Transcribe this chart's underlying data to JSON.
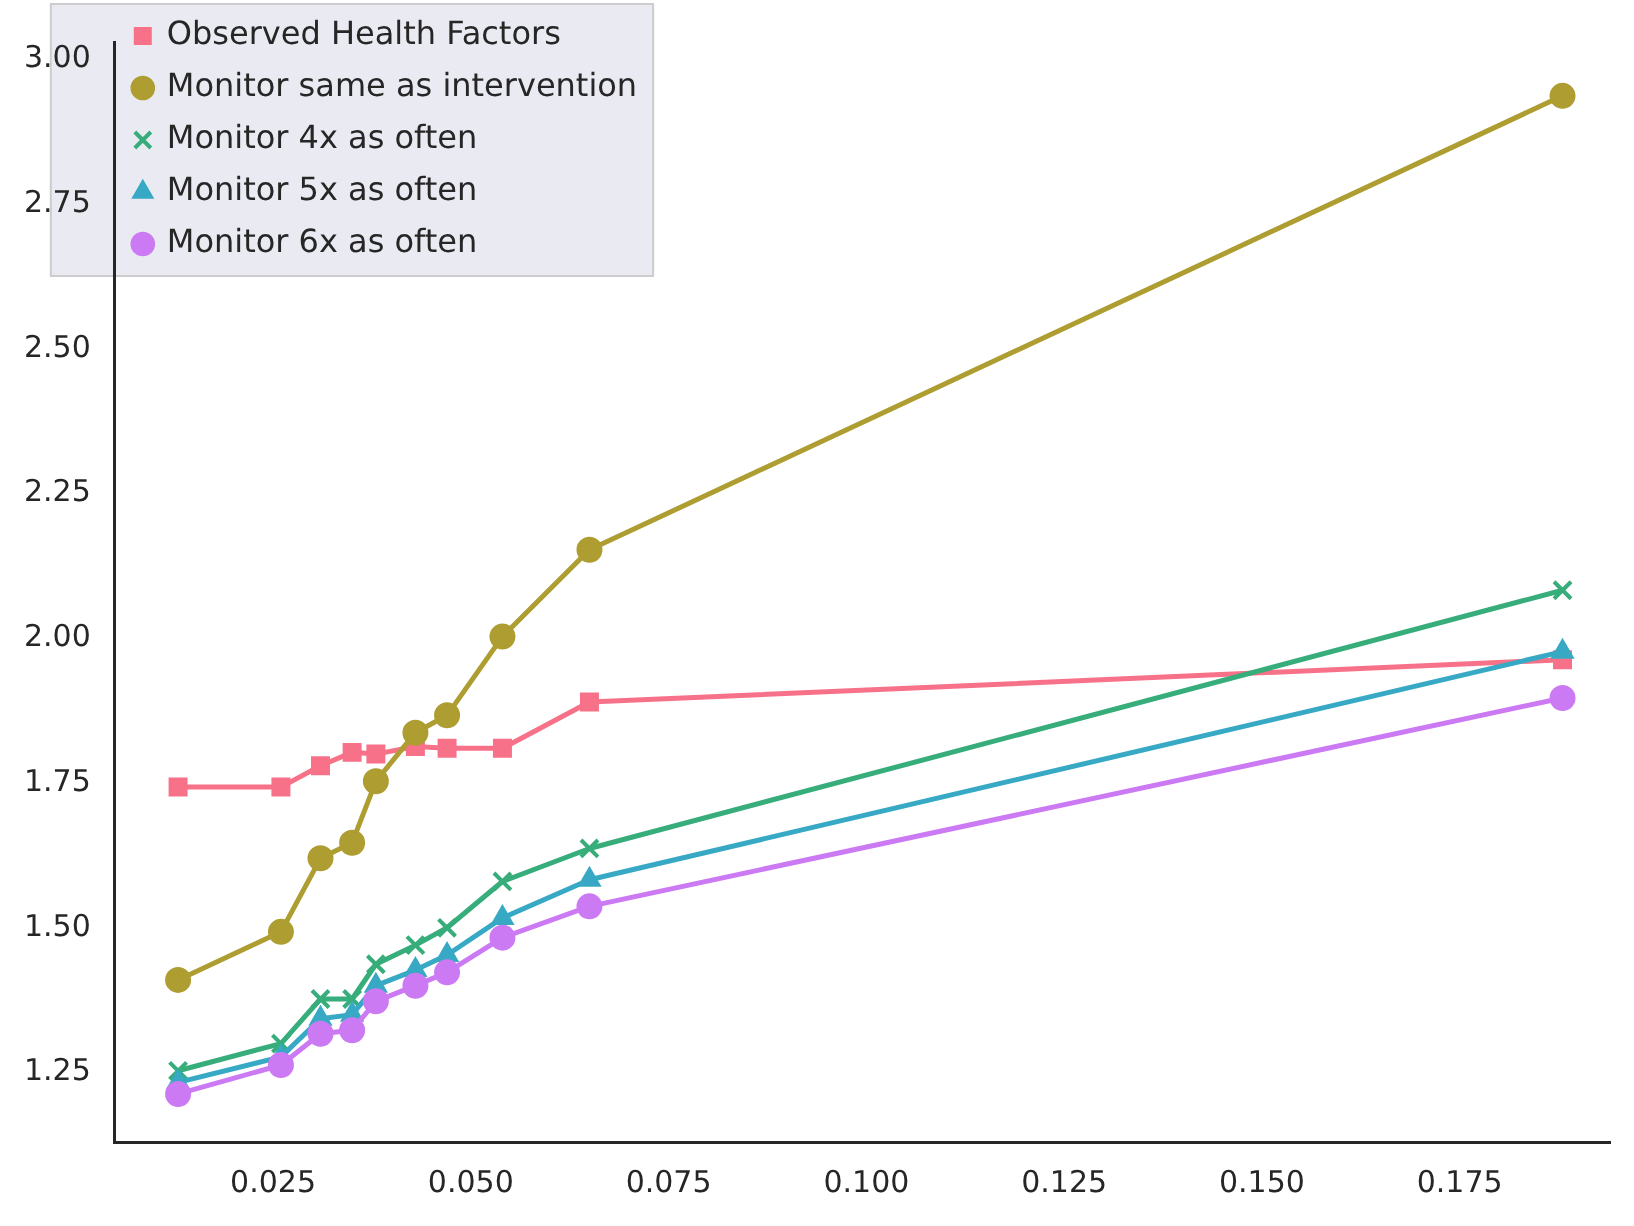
{
  "chart_data": {
    "type": "line",
    "x": [
      0.013,
      0.026,
      0.031,
      0.035,
      0.038,
      0.043,
      0.047,
      0.054,
      0.065,
      0.188
    ],
    "series": [
      {
        "name": "Observed Health Factors",
        "color": "#f77189",
        "marker": "square",
        "values": [
          1.743,
          1.743,
          1.78,
          1.803,
          1.8,
          1.813,
          1.81,
          1.81,
          1.89,
          1.963
        ]
      },
      {
        "name": "Monitor same as intervention",
        "color": "#ae9d31",
        "marker": "circle",
        "values": [
          1.41,
          1.493,
          1.62,
          1.647,
          1.753,
          1.837,
          1.867,
          2.003,
          2.153,
          2.937
        ]
      },
      {
        "name": "Monitor 4x as often",
        "color": "#36ad7a",
        "marker": "cross",
        "values": [
          1.253,
          1.3,
          1.377,
          1.377,
          1.437,
          1.47,
          1.5,
          1.58,
          1.637,
          2.083
        ]
      },
      {
        "name": "Monitor 5x as often",
        "color": "#38a9c5",
        "marker": "triangle",
        "values": [
          1.233,
          1.277,
          1.343,
          1.35,
          1.4,
          1.427,
          1.453,
          1.517,
          1.583,
          1.977
        ]
      },
      {
        "name": "Monitor 6x as often",
        "color": "#cc7af4",
        "marker": "circle",
        "values": [
          1.213,
          1.263,
          1.317,
          1.323,
          1.373,
          1.4,
          1.423,
          1.483,
          1.537,
          1.897
        ]
      }
    ],
    "xlim": [
      0.005,
      0.194
    ],
    "ylim": [
      1.13,
      3.03
    ],
    "xticks": [
      0.025,
      {
        "value": 0.05,
        "label": "0.050"
      },
      0.075,
      {
        "value": 0.1,
        "label": "0.100"
      },
      0.125,
      {
        "value": 0.15,
        "label": "0.150"
      },
      0.175
    ],
    "yticks": [
      1.25,
      {
        "value": 1.5,
        "label": "1.50"
      },
      1.75,
      {
        "value": 2,
        "label": "2.00"
      },
      2.25,
      {
        "value": 2.5,
        "label": "2.50"
      },
      2.75,
      {
        "value": 3,
        "label": "3.00"
      }
    ],
    "grid": false,
    "legend": "top left",
    "line_style": "solid"
  }
}
